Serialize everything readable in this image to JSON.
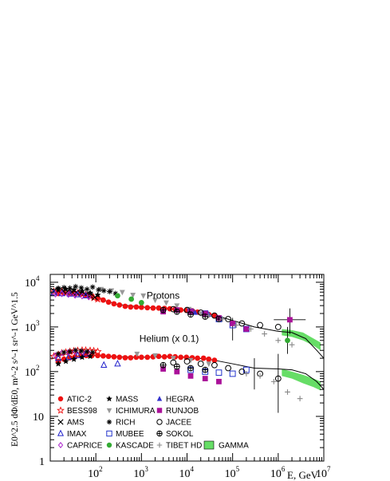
{
  "chart_data": {
    "type": "scatter",
    "xscale": "log",
    "yscale": "log",
    "xlim": [
      10,
      10000000
    ],
    "ylim": [
      1,
      15000
    ],
    "xlabel": "E, GeV",
    "ylabel": "E0^2.5 dΦ/dE0, m^-2 s^-1 sr^-1 GeV^1.5",
    "x_ticks": [
      {
        "value": 100,
        "base": "10",
        "exp": "2"
      },
      {
        "value": 1000,
        "base": "10",
        "exp": "3"
      },
      {
        "value": 10000,
        "base": "10",
        "exp": "4"
      },
      {
        "value": 100000,
        "base": "10",
        "exp": "5"
      },
      {
        "value": 1000000,
        "base": "10",
        "exp": "6"
      },
      {
        "value": 10000000,
        "base": "10",
        "exp": "7"
      }
    ],
    "y_ticks": [
      {
        "value": 1,
        "base": "1",
        "exp": ""
      },
      {
        "value": 10,
        "base": "10",
        "exp": ""
      },
      {
        "value": 100,
        "base": "10",
        "exp": "2"
      },
      {
        "value": 1000,
        "base": "10",
        "exp": "3"
      },
      {
        "value": 10000,
        "base": "10",
        "exp": "4"
      }
    ],
    "annotations": [
      {
        "text": "Protons",
        "x": 1300,
        "y": 4300
      },
      {
        "text": "Helium (x 0.1)",
        "x": 900,
        "y": 470
      }
    ],
    "legend": {
      "placement": "bottom-left",
      "columns": [
        [
          {
            "label": "ATIC-2",
            "marker": "filled-circle",
            "color": "#ee1111"
          },
          {
            "label": "BESS98",
            "marker": "open-star",
            "color": "#ee1111"
          },
          {
            "label": "AMS",
            "marker": "cross",
            "color": "#000000"
          },
          {
            "label": "IMAX",
            "marker": "open-triangle",
            "color": "#2222cc"
          },
          {
            "label": "CAPRICE",
            "marker": "open-diamond",
            "color": "#aa22cc"
          }
        ],
        [
          {
            "label": "MASS",
            "marker": "filled-star",
            "color": "#000000"
          },
          {
            "label": "ICHIMURA",
            "marker": "filled-triangle-down",
            "color": "#999999"
          },
          {
            "label": "RICH",
            "marker": "asterisk",
            "color": "#000000"
          },
          {
            "label": "MUBEE",
            "marker": "open-square",
            "color": "#2233cc"
          },
          {
            "label": "KASCADE",
            "marker": "filled-circle",
            "color": "#33aa33"
          }
        ],
        [
          {
            "label": "HEGRA",
            "marker": "filled-triangle-up",
            "color": "#3333cc"
          },
          {
            "label": "RUNJOB",
            "marker": "filled-square",
            "color": "#aa1199"
          },
          {
            "label": "JACEE",
            "marker": "open-circle",
            "color": "#000000"
          },
          {
            "label": "SOKOL",
            "marker": "open-cross-circle",
            "color": "#000000"
          },
          {
            "label": "TIBET HD",
            "marker": "plus",
            "color": "#888888"
          }
        ],
        [
          {
            "label": "",
            "marker": "none",
            "color": ""
          },
          {
            "label": "",
            "marker": "none",
            "color": ""
          },
          {
            "label": "",
            "marker": "none",
            "color": ""
          },
          {
            "label": "",
            "marker": "none",
            "color": ""
          },
          {
            "label": "GAMMA",
            "marker": "band",
            "color": "#66dd66"
          }
        ]
      ]
    },
    "series": [
      {
        "name": "ATIC-2",
        "group": "protons",
        "marker": "filled-circle",
        "color": "#ee1111",
        "x": [
          15,
          20,
          27,
          35,
          47,
          62,
          82,
          110,
          145,
          190,
          250,
          330,
          440,
          580,
          770,
          1000,
          1350,
          1800,
          2400,
          3200,
          4200,
          5500,
          7300,
          9700,
          13000,
          17000,
          23000,
          30000,
          40000
        ],
        "y": [
          5600,
          5700,
          5650,
          5600,
          5450,
          5200,
          4900,
          4450,
          4000,
          3600,
          3300,
          3100,
          2900,
          2800,
          2800,
          2750,
          2700,
          2650,
          2650,
          2600,
          2550,
          2500,
          2400,
          2350,
          2300,
          2150,
          2000,
          1900,
          1800
        ]
      },
      {
        "name": "ATIC-2",
        "group": "helium",
        "marker": "filled-circle",
        "color": "#ee1111",
        "x": [
          15,
          20,
          27,
          35,
          47,
          62,
          82,
          110,
          145,
          190,
          250,
          330,
          440,
          580,
          770,
          1000,
          1350,
          1800,
          2400,
          3200,
          4200,
          5500,
          7300,
          9700,
          13000,
          17000,
          23000,
          30000,
          40000
        ],
        "y": [
          170,
          190,
          205,
          215,
          225,
          230,
          230,
          230,
          225,
          220,
          215,
          210,
          205,
          205,
          210,
          210,
          210,
          215,
          220,
          215,
          220,
          215,
          210,
          210,
          205,
          200,
          200,
          190,
          180
        ]
      },
      {
        "name": "BESS98",
        "group": "protons",
        "marker": "open-star",
        "color": "#ee1111",
        "x": [
          12,
          15,
          18,
          22,
          27,
          33,
          40,
          50,
          60,
          75,
          90,
          110
        ],
        "y": [
          6200,
          6300,
          6200,
          6100,
          6000,
          5900,
          5700,
          5500,
          5200,
          4900,
          4500,
          4200
        ]
      },
      {
        "name": "BESS98",
        "group": "helium",
        "marker": "open-star",
        "color": "#ee1111",
        "x": [
          12,
          15,
          18,
          22,
          27,
          33,
          40,
          50,
          60,
          75,
          90,
          110
        ],
        "y": [
          220,
          240,
          260,
          270,
          280,
          290,
          295,
          300,
          300,
          295,
          290,
          280
        ]
      },
      {
        "name": "AMS",
        "group": "protons",
        "marker": "cross",
        "color": "#000000",
        "x": [
          12,
          15,
          19,
          24,
          30,
          38,
          48,
          60,
          75,
          95
        ],
        "y": [
          6400,
          6500,
          6400,
          6300,
          6100,
          5900,
          5600,
          5300,
          5000,
          4600
        ]
      },
      {
        "name": "IMAX",
        "group": "protons",
        "marker": "open-triangle",
        "color": "#2222cc",
        "x": [
          12,
          18,
          27,
          40,
          60
        ],
        "y": [
          5800,
          5600,
          5500,
          5300,
          5000
        ]
      },
      {
        "name": "IMAX",
        "group": "helium",
        "marker": "open-triangle",
        "color": "#2222cc",
        "x": [
          15,
          25,
          40,
          60,
          150,
          300
        ],
        "y": [
          200,
          210,
          230,
          250,
          140,
          150
        ]
      },
      {
        "name": "CAPRICE",
        "group": "protons",
        "marker": "open-diamond",
        "color": "#aa22cc",
        "x": [
          13,
          18,
          25,
          35,
          50,
          70
        ],
        "y": [
          5400,
          5500,
          5300,
          5100,
          4900,
          4700
        ]
      },
      {
        "name": "CAPRICE",
        "group": "helium",
        "marker": "open-diamond",
        "color": "#aa22cc",
        "x": [
          13,
          18,
          25,
          35,
          50,
          70
        ],
        "y": [
          230,
          260,
          270,
          280,
          270,
          260
        ]
      },
      {
        "name": "MASS",
        "group": "protons",
        "marker": "filled-star",
        "color": "#000000",
        "x": [
          15,
          22,
          33,
          50,
          75,
          110
        ],
        "y": [
          7200,
          7000,
          6700,
          6300,
          5800,
          5200
        ]
      },
      {
        "name": "MASS",
        "group": "helium",
        "marker": "filled-star",
        "color": "#000000",
        "x": [
          15,
          22,
          33,
          50,
          75
        ],
        "y": [
          150,
          170,
          190,
          210,
          220
        ]
      },
      {
        "name": "ICHIMURA",
        "group": "protons",
        "marker": "filled-triangle-down",
        "color": "#999999",
        "x": [
          130,
          220,
          380,
          650,
          1100,
          2000,
          3500,
          6000,
          11000,
          20000
        ],
        "y": [
          7000,
          6500,
          6000,
          5200,
          5000,
          4000,
          3500,
          3000,
          2500,
          2000
        ]
      },
      {
        "name": "ICHIMURA",
        "group": "helium",
        "marker": "filled-triangle-down",
        "color": "#999999",
        "x": [
          800,
          2000,
          5000,
          12000,
          30000
        ],
        "y": [
          250,
          230,
          200,
          180,
          150
        ]
      },
      {
        "name": "RICH",
        "group": "protons",
        "marker": "asterisk",
        "color": "#000000",
        "x": [
          15,
          20,
          27,
          36,
          48,
          64,
          85,
          115,
          150,
          200,
          270
        ],
        "y": [
          7300,
          7600,
          7400,
          8000,
          7500,
          7000,
          7800,
          6800,
          6500,
          6200,
          5600
        ]
      },
      {
        "name": "RICH",
        "group": "helium",
        "marker": "asterisk",
        "color": "#000000",
        "x": [
          15,
          20,
          27,
          36,
          48,
          64,
          85
        ],
        "y": [
          250,
          270,
          280,
          300,
          290,
          280,
          270
        ]
      },
      {
        "name": "MUBEE",
        "group": "protons",
        "marker": "open-square",
        "color": "#2233cc",
        "x": [
          12000,
          25000,
          50000,
          100000,
          200000
        ],
        "y": [
          2200,
          2000,
          1500,
          1100,
          900
        ]
      },
      {
        "name": "MUBEE",
        "group": "helium",
        "marker": "open-square",
        "color": "#2233cc",
        "x": [
          12000,
          25000,
          50000,
          100000,
          200000
        ],
        "y": [
          110,
          100,
          95,
          90,
          110
        ]
      },
      {
        "name": "KASCADE",
        "group": "protons",
        "marker": "filled-circle",
        "color": "#33aa33",
        "x": [
          300,
          600,
          1000,
          1600000
        ],
        "y": [
          5000,
          4200,
          3500,
          500
        ]
      },
      {
        "name": "HEGRA",
        "group": "protons",
        "marker": "filled-triangle-up",
        "color": "#3333cc",
        "x": [
          15000,
          30000
        ],
        "y": [
          2100,
          1900
        ]
      },
      {
        "name": "RUNJOB",
        "group": "protons",
        "marker": "filled-square",
        "color": "#aa1199",
        "x": [
          3000,
          6000,
          12000,
          25000,
          50000,
          100000,
          200000,
          1800000
        ],
        "y": [
          2200,
          2400,
          2200,
          2000,
          1600,
          1200,
          900,
          1450
        ]
      },
      {
        "name": "RUNJOB",
        "group": "helium",
        "marker": "filled-square",
        "color": "#aa1199",
        "x": [
          3000,
          6000,
          12000,
          25000,
          50000
        ],
        "y": [
          115,
          100,
          80,
          70,
          60
        ]
      },
      {
        "name": "JACEE",
        "group": "protons",
        "marker": "open-circle",
        "color": "#000000",
        "x": [
          5000,
          10000,
          20000,
          40000,
          80000,
          160000,
          400000,
          1000000
        ],
        "y": [
          2500,
          2400,
          2100,
          1800,
          1500,
          1200,
          1100,
          1000
        ]
      },
      {
        "name": "JACEE",
        "group": "helium",
        "marker": "open-circle",
        "color": "#000000",
        "x": [
          5000,
          10000,
          20000,
          40000,
          80000,
          160000,
          400000,
          1000000
        ],
        "y": [
          160,
          170,
          150,
          140,
          120,
          100,
          90,
          70
        ]
      },
      {
        "name": "SOKOL",
        "group": "protons",
        "marker": "open-cross-circle",
        "color": "#000000",
        "x": [
          3000,
          6000,
          12000,
          25000,
          50000
        ],
        "y": [
          2400,
          2200,
          1900,
          1700,
          1500
        ]
      },
      {
        "name": "SOKOL",
        "group": "helium",
        "marker": "open-cross-circle",
        "color": "#000000",
        "x": [
          3000,
          6000,
          12000,
          25000
        ],
        "y": [
          140,
          130,
          120,
          110
        ]
      },
      {
        "name": "TIBET HD",
        "group": "protons",
        "marker": "plus",
        "color": "#888888",
        "x": [
          30000,
          60000,
          120000,
          250000,
          500000,
          1000000,
          2000000
        ],
        "y": [
          1800,
          1500,
          1100,
          900,
          700,
          500,
          400
        ]
      },
      {
        "name": "TIBET HD",
        "group": "helium",
        "marker": "plus",
        "color": "#888888",
        "x": [
          200000,
          400000,
          800000,
          1600000,
          3000000
        ],
        "y": [
          90,
          80,
          60,
          35,
          25
        ]
      }
    ],
    "error_bars": [
      {
        "x": 1800000,
        "y": 1450,
        "xlo": 800000,
        "xhi": 4000000,
        "ylo": 700,
        "yhi": 2600
      },
      {
        "x": 1600000,
        "y": 500,
        "xlo": 1600000,
        "xhi": 1600000,
        "ylo": 250,
        "yhi": 1000
      },
      {
        "x": 1000000,
        "y": 60,
        "xlo": 1000000,
        "xhi": 1000000,
        "ylo": 12,
        "yhi": 250
      },
      {
        "x": 300000,
        "y": 100,
        "xlo": 300000,
        "xhi": 300000,
        "ylo": 40,
        "yhi": 200
      },
      {
        "x": 100000,
        "y": 900,
        "xlo": 100000,
        "xhi": 100000,
        "ylo": 500,
        "yhi": 1600
      }
    ],
    "curves": [
      {
        "group": "protons",
        "x": [
          15,
          30,
          60,
          100,
          300,
          1000,
          3000,
          10000,
          30000,
          100000,
          300000,
          1000000,
          2000000,
          4000000,
          7000000,
          10000000
        ],
        "y": [
          5700,
          5600,
          5200,
          4500,
          3200,
          2800,
          2600,
          2350,
          2000,
          1400,
          1000,
          800,
          750,
          550,
          300,
          200
        ]
      },
      {
        "group": "helium",
        "x": [
          15,
          30,
          60,
          100,
          300,
          1000,
          3000,
          10000,
          30000,
          100000,
          300000,
          1000000,
          2000000,
          4000000,
          7000000,
          10000000
        ],
        "y": [
          180,
          215,
          230,
          230,
          215,
          210,
          215,
          210,
          190,
          150,
          120,
          115,
          110,
          90,
          60,
          40
        ]
      }
    ],
    "gamma_bands": [
      {
        "group": "protons",
        "x": [
          1200000,
          2000000,
          3500000,
          6000000,
          8500000
        ],
        "ylo": [
          650,
          600,
          500,
          380,
          300
        ],
        "yhi": [
          900,
          850,
          750,
          550,
          450
        ]
      },
      {
        "group": "helium",
        "x": [
          1200000,
          2000000,
          3500000,
          6000000,
          8500000
        ],
        "ylo": [
          80,
          70,
          55,
          45,
          38
        ],
        "yhi": [
          115,
          100,
          85,
          70,
          60
        ]
      }
    ]
  }
}
